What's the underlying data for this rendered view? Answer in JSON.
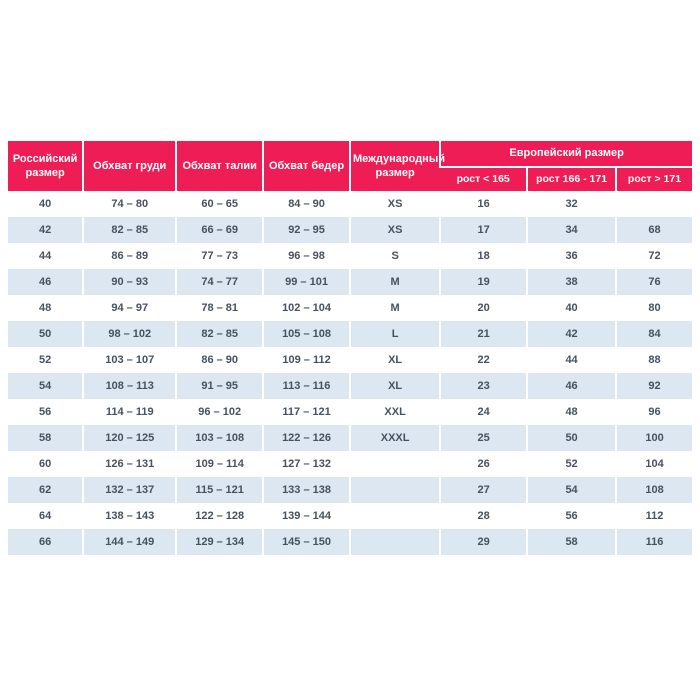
{
  "chart_data": {
    "type": "table",
    "columns": [
      "Российский размер",
      "Обхват груди",
      "Обхват талии",
      "Обхват бедер",
      "Международный размер",
      "Европейский размер"
    ],
    "european_subcolumns": [
      "рост < 165",
      "рост 166 - 171",
      "рост > 171"
    ],
    "rows": [
      [
        "40",
        "74 – 80",
        "60 – 65",
        "84 – 90",
        "XS",
        "16",
        "32",
        ""
      ],
      [
        "42",
        "82 – 85",
        "66 – 69",
        "92 – 95",
        "XS",
        "17",
        "34",
        "68"
      ],
      [
        "44",
        "86 – 89",
        "77 – 73",
        "96 – 98",
        "S",
        "18",
        "36",
        "72"
      ],
      [
        "46",
        "90 – 93",
        "74 – 77",
        "99 – 101",
        "M",
        "19",
        "38",
        "76"
      ],
      [
        "48",
        "94 – 97",
        "78 – 81",
        "102 – 104",
        "M",
        "20",
        "40",
        "80"
      ],
      [
        "50",
        "98 – 102",
        "82 – 85",
        "105 – 108",
        "L",
        "21",
        "42",
        "84"
      ],
      [
        "52",
        "103 – 107",
        "86 – 90",
        "109 – 112",
        "XL",
        "22",
        "44",
        "88"
      ],
      [
        "54",
        "108 – 113",
        "91 – 95",
        "113 – 116",
        "XL",
        "23",
        "46",
        "92"
      ],
      [
        "56",
        "114 – 119",
        "96 – 102",
        "117 – 121",
        "XXL",
        "24",
        "48",
        "96"
      ],
      [
        "58",
        "120 – 125",
        "103 – 108",
        "122 – 126",
        "XXXL",
        "25",
        "50",
        "100"
      ],
      [
        "60",
        "126 – 131",
        "109 – 114",
        "127 – 132",
        "",
        "26",
        "52",
        "104"
      ],
      [
        "62",
        "132 – 137",
        "115 – 121",
        "133 – 138",
        "",
        "27",
        "54",
        "108"
      ],
      [
        "64",
        "138 – 143",
        "122 – 128",
        "139 – 144",
        "",
        "28",
        "56",
        "112"
      ],
      [
        "66",
        "144 – 149",
        "129 – 134",
        "145 – 150",
        "",
        "29",
        "58",
        "116"
      ]
    ]
  },
  "colors": {
    "header_bg": "#ee1d55",
    "header_text": "#ffffff",
    "row_bg": "#ffffff",
    "row_alt_bg": "#dde7f1",
    "cell_text": "#46525f"
  }
}
